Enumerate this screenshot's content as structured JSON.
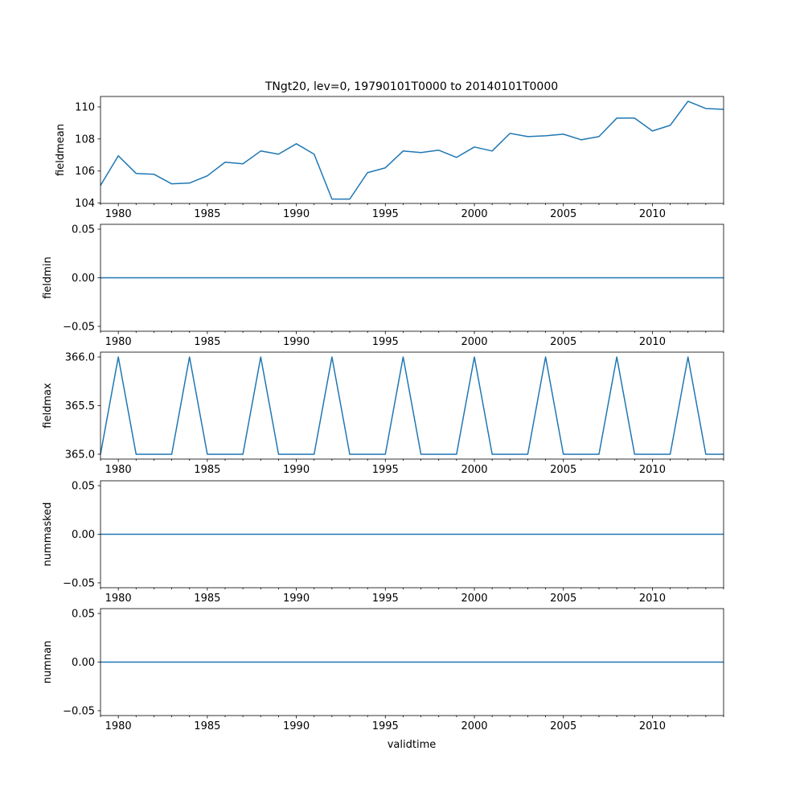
{
  "chart_data": {
    "type": "line",
    "title": "TNgt20, lev=0, 19790101T0000 to 20140101T0000",
    "xlabel": "validtime",
    "x": [
      1979,
      1980,
      1981,
      1982,
      1983,
      1984,
      1985,
      1986,
      1987,
      1988,
      1989,
      1990,
      1991,
      1992,
      1993,
      1994,
      1995,
      1996,
      1997,
      1998,
      1999,
      2000,
      2001,
      2002,
      2003,
      2004,
      2005,
      2006,
      2007,
      2008,
      2009,
      2010,
      2011,
      2012,
      2013,
      2014
    ],
    "xlim": [
      1979,
      2014
    ],
    "xticks": [
      1980,
      1985,
      1990,
      1995,
      2000,
      2005,
      2010
    ],
    "xtick_labels": [
      "1980",
      "1985",
      "1990",
      "1995",
      "2000",
      "2005",
      "2010"
    ],
    "grid": false,
    "line_color": "#1f77b4",
    "panels": [
      {
        "ylabel": "fieldmean",
        "ylim": [
          103.98,
          110.65
        ],
        "yticks": [
          104,
          106,
          108,
          110
        ],
        "ytick_labels": [
          "104",
          "106",
          "108",
          "110"
        ],
        "values": [
          105.1,
          106.95,
          105.85,
          105.8,
          105.2,
          105.25,
          105.7,
          106.55,
          106.45,
          107.25,
          107.05,
          107.7,
          107.05,
          104.25,
          104.25,
          105.9,
          106.2,
          107.25,
          107.15,
          107.3,
          106.85,
          107.5,
          107.25,
          108.35,
          108.15,
          108.2,
          108.3,
          107.95,
          108.15,
          109.3,
          109.3,
          108.5,
          108.85,
          110.35,
          109.9,
          109.85
        ]
      },
      {
        "ylabel": "fieldmin",
        "ylim": [
          -0.055,
          0.055
        ],
        "yticks": [
          -0.05,
          0.0,
          0.05
        ],
        "ytick_labels": [
          "−0.05",
          "0.00",
          "0.05"
        ],
        "values": [
          0,
          0,
          0,
          0,
          0,
          0,
          0,
          0,
          0,
          0,
          0,
          0,
          0,
          0,
          0,
          0,
          0,
          0,
          0,
          0,
          0,
          0,
          0,
          0,
          0,
          0,
          0,
          0,
          0,
          0,
          0,
          0,
          0,
          0,
          0,
          0
        ]
      },
      {
        "ylabel": "fieldmax",
        "ylim": [
          364.95,
          366.05
        ],
        "yticks": [
          365.0,
          365.5,
          366.0
        ],
        "ytick_labels": [
          "365.0",
          "365.5",
          "366.0"
        ],
        "values": [
          365,
          366,
          365,
          365,
          365,
          366,
          365,
          365,
          365,
          366,
          365,
          365,
          365,
          366,
          365,
          365,
          365,
          366,
          365,
          365,
          365,
          366,
          365,
          365,
          365,
          366,
          365,
          365,
          365,
          366,
          365,
          365,
          365,
          366,
          365,
          365
        ]
      },
      {
        "ylabel": "nummasked",
        "ylim": [
          -0.055,
          0.055
        ],
        "yticks": [
          -0.05,
          0.0,
          0.05
        ],
        "ytick_labels": [
          "−0.05",
          "0.00",
          "0.05"
        ],
        "values": [
          0,
          0,
          0,
          0,
          0,
          0,
          0,
          0,
          0,
          0,
          0,
          0,
          0,
          0,
          0,
          0,
          0,
          0,
          0,
          0,
          0,
          0,
          0,
          0,
          0,
          0,
          0,
          0,
          0,
          0,
          0,
          0,
          0,
          0,
          0,
          0
        ]
      },
      {
        "ylabel": "numnan",
        "ylim": [
          -0.055,
          0.055
        ],
        "yticks": [
          -0.05,
          0.0,
          0.05
        ],
        "ytick_labels": [
          "−0.05",
          "0.00",
          "0.05"
        ],
        "values": [
          0,
          0,
          0,
          0,
          0,
          0,
          0,
          0,
          0,
          0,
          0,
          0,
          0,
          0,
          0,
          0,
          0,
          0,
          0,
          0,
          0,
          0,
          0,
          0,
          0,
          0,
          0,
          0,
          0,
          0,
          0,
          0,
          0,
          0,
          0,
          0
        ]
      }
    ]
  }
}
